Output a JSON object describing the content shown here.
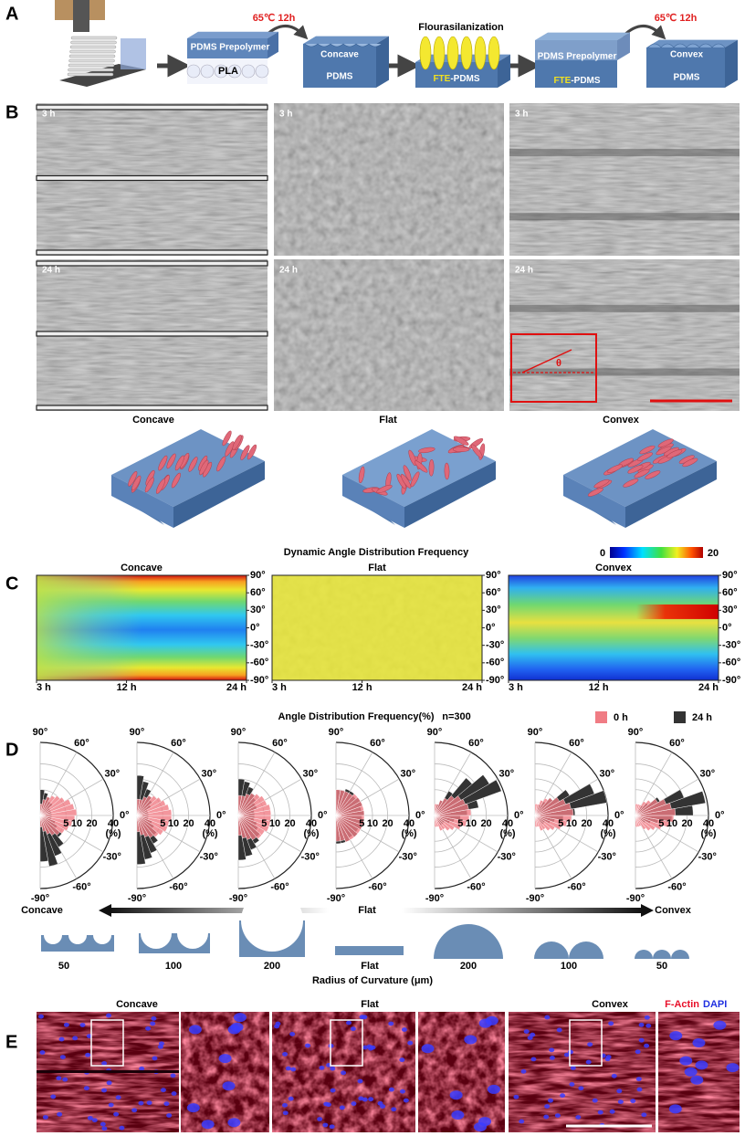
{
  "panel_labels": [
    "A",
    "B",
    "C",
    "D",
    "E"
  ],
  "panel_a": {
    "block1_top": "PDMS Prepolymer",
    "block1_bottom": "PLA",
    "heat1": "65℃ 12h",
    "block2_top": "Concave",
    "block2_bottom": "PDMS",
    "process": "Flourasilanization",
    "block3": [
      "FTE",
      "-PDMS"
    ],
    "block4_top": "PDMS Prepolymer",
    "block4_bottom": [
      "FTE",
      "-PDMS"
    ],
    "heat2": "65℃ 12h",
    "block5_top": "Convex",
    "block5_bottom": "PDMS"
  },
  "panel_b": {
    "times": [
      [
        "3 h",
        "3 h",
        "3 h"
      ],
      [
        "24 h",
        "24 h",
        "24 h"
      ]
    ],
    "angle_symbol": "θ",
    "surfaces": [
      "Concave",
      "Flat",
      "Convex"
    ]
  },
  "panel_c": {
    "title": "Dynamic Angle Distribution Frequency",
    "colorbar": [
      0,
      20
    ],
    "titles": [
      "Concave",
      "Flat",
      "Convex"
    ],
    "ylim": [
      -90,
      90
    ],
    "yticks": [
      {
        "value": 90,
        "label": "90°"
      },
      {
        "value": 60,
        "label": "60°"
      },
      {
        "value": 30,
        "label": "30°"
      },
      {
        "value": 0,
        "label": "0°"
      },
      {
        "value": -30,
        "label": "-30°"
      },
      {
        "value": -60,
        "label": "-60°"
      },
      {
        "value": -90,
        "label": "-90°"
      }
    ],
    "xlim": [
      3,
      24
    ],
    "xticks": [
      {
        "value": 3,
        "label": "3 h"
      },
      {
        "value": 12,
        "label": "12 h"
      },
      {
        "value": 24,
        "label": "24 h"
      }
    ]
  },
  "panel_d": {
    "type": "rose",
    "title": "Angle Distribution Frequency(%)",
    "n": "n=300",
    "legend": [
      {
        "label": "0 h",
        "color": "#f07c84"
      },
      {
        "label": "24 h",
        "color": "#333333"
      }
    ],
    "angle_ticks": [
      {
        "value": 90,
        "label": "90°"
      },
      {
        "value": 60,
        "label": "60°"
      },
      {
        "value": 30,
        "label": "30°"
      },
      {
        "value": 0,
        "label": "0°"
      },
      {
        "value": -30,
        "label": "-30°"
      },
      {
        "value": -60,
        "label": "-60°"
      },
      {
        "value": -90,
        "label": "-90°"
      }
    ],
    "rlim": [
      0,
      40
    ],
    "radial_scale": "sqrt",
    "radial_ticks": [
      5,
      10,
      20,
      40
    ],
    "radial_unit": "(%)",
    "bins": [
      -90,
      -80,
      -70,
      -60,
      -50,
      -40,
      -30,
      -20,
      -10,
      0,
      10,
      20,
      30,
      40,
      50,
      60,
      70,
      80,
      90
    ],
    "roses": [
      [
        [
          1,
          2,
          3,
          4,
          5,
          6,
          7,
          8,
          9,
          10,
          9,
          8,
          6,
          5,
          4,
          3,
          2,
          1
        ],
        [
          16,
          20,
          14,
          10,
          6,
          3,
          2,
          1,
          1,
          1,
          1,
          1,
          1,
          2,
          2,
          3,
          4,
          5
        ]
      ],
      [
        [
          2,
          3,
          4,
          5,
          6,
          7,
          8,
          8,
          9,
          9,
          8,
          7,
          6,
          5,
          4,
          3,
          2,
          2
        ],
        [
          18,
          15,
          12,
          8,
          5,
          3,
          2,
          1,
          1,
          1,
          1,
          1,
          2,
          3,
          4,
          6,
          9,
          12
        ]
      ],
      [
        [
          3,
          4,
          5,
          6,
          7,
          7,
          8,
          8,
          8,
          8,
          8,
          7,
          7,
          6,
          5,
          4,
          3,
          3
        ],
        [
          15,
          13,
          10,
          8,
          6,
          4,
          3,
          2,
          2,
          2,
          2,
          3,
          3,
          4,
          5,
          7,
          9,
          10
        ]
      ],
      [
        [
          5,
          5,
          6,
          6,
          6,
          6,
          6,
          6,
          6,
          6,
          6,
          6,
          6,
          6,
          5,
          5,
          5,
          5
        ],
        [
          6,
          6,
          6,
          5,
          6,
          5,
          6,
          6,
          5,
          6,
          5,
          6,
          6,
          5,
          6,
          6,
          5,
          5
        ]
      ],
      [
        [
          1,
          1,
          2,
          2,
          3,
          4,
          6,
          8,
          9,
          10,
          9,
          8,
          7,
          5,
          3,
          2,
          1,
          1
        ],
        [
          0,
          0,
          0,
          1,
          1,
          1,
          2,
          3,
          5,
          8,
          15,
          38,
          30,
          18,
          6,
          2,
          1,
          0
        ]
      ],
      [
        [
          1,
          1,
          2,
          2,
          3,
          4,
          6,
          8,
          10,
          11,
          10,
          8,
          6,
          4,
          3,
          2,
          1,
          1
        ],
        [
          0,
          0,
          0,
          0,
          1,
          1,
          2,
          3,
          6,
          12,
          40,
          30,
          12,
          4,
          2,
          1,
          0,
          0
        ]
      ],
      [
        [
          1,
          1,
          1,
          2,
          3,
          4,
          6,
          9,
          11,
          12,
          10,
          8,
          5,
          3,
          2,
          1,
          1,
          1
        ],
        [
          0,
          0,
          0,
          0,
          0,
          1,
          2,
          4,
          10,
          25,
          38,
          20,
          6,
          2,
          1,
          0,
          0,
          0
        ]
      ]
    ],
    "gradient_labels": [
      "Concave",
      "Flat",
      "Convex"
    ],
    "radius_labels": [
      50,
      100,
      200,
      "Flat",
      200,
      100,
      50
    ],
    "radius_title": "Radius of Curvature (μm)"
  },
  "panel_e": {
    "titles": [
      "Concave",
      "Flat",
      "Convex"
    ],
    "stain_1": "F-Actin",
    "stain_2": "DAPI"
  }
}
